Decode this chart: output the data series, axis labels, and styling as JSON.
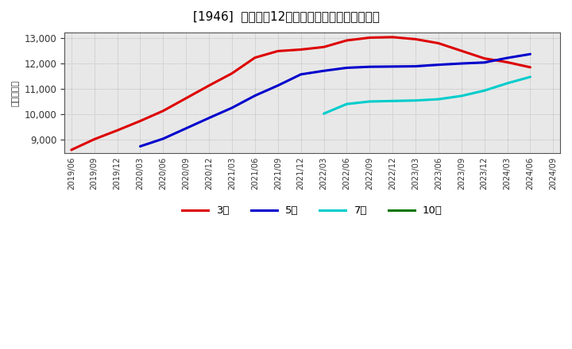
{
  "title": "[1946]  経常利益12か月移動合計の平均値の推移",
  "ylabel": "（百万円）",
  "background_color": "#ffffff",
  "plot_bg_color": "#e8e8e8",
  "grid_color": "#aaaaaa",
  "ylim": [
    8450,
    13200
  ],
  "yticks": [
    9000,
    10000,
    11000,
    12000,
    13000
  ],
  "series": {
    "3年": {
      "color": "#dd0000",
      "xi": [
        0,
        1,
        2,
        3,
        4,
        5,
        6,
        7,
        8,
        9,
        10,
        11,
        12,
        13,
        14,
        15,
        16,
        17,
        18,
        19,
        20
      ],
      "y": [
        8580,
        9000,
        9350,
        9720,
        10120,
        10620,
        11120,
        11600,
        12220,
        12480,
        12540,
        12640,
        12900,
        13010,
        13030,
        12950,
        12790,
        12490,
        12190,
        12040,
        11840
      ]
    },
    "5年": {
      "color": "#0000cc",
      "xi": [
        3,
        4,
        5,
        6,
        7,
        8,
        9,
        10,
        11,
        12,
        13,
        14,
        15,
        16,
        17,
        18,
        19,
        20
      ],
      "y": [
        8720,
        9020,
        9430,
        9840,
        10240,
        10720,
        11120,
        11560,
        11700,
        11820,
        11860,
        11870,
        11880,
        11940,
        11990,
        12030,
        12210,
        12360
      ]
    },
    "7年": {
      "color": "#00cccc",
      "xi": [
        11,
        12,
        13,
        14,
        15,
        16,
        17,
        18,
        19,
        20
      ],
      "y": [
        10010,
        10390,
        10490,
        10510,
        10530,
        10580,
        10710,
        10920,
        11210,
        11460
      ]
    },
    "10年": {
      "color": "#007700",
      "xi": [],
      "y": []
    }
  },
  "xtick_labels": [
    "2019/06",
    "2019/09",
    "2019/12",
    "2020/03",
    "2020/06",
    "2020/09",
    "2020/12",
    "2021/03",
    "2021/06",
    "2021/09",
    "2021/12",
    "2022/03",
    "2022/06",
    "2022/09",
    "2022/12",
    "2023/03",
    "2023/06",
    "2023/09",
    "2023/12",
    "2024/03",
    "2024/06",
    "2024/09"
  ],
  "legend_labels": [
    "3年",
    "5年",
    "7年",
    "10年"
  ],
  "legend_colors": [
    "#dd0000",
    "#0000cc",
    "#00cccc",
    "#007700"
  ]
}
